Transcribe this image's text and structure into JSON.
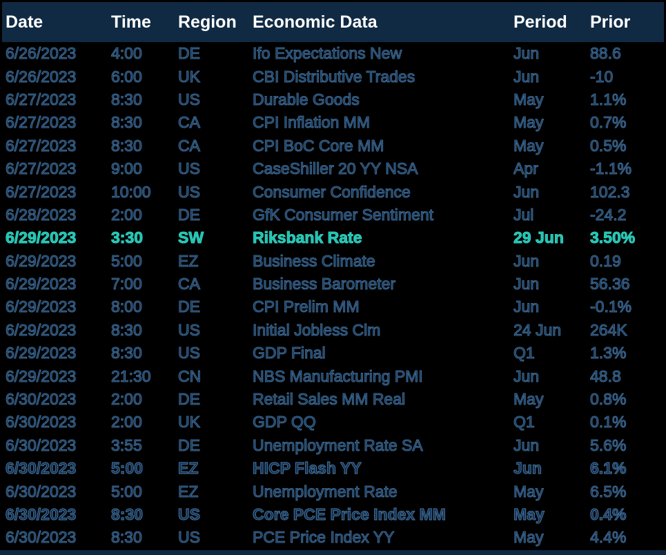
{
  "header": {
    "columns": [
      "Date",
      "Time",
      "Region",
      "Economic Data",
      "Period",
      "Prior"
    ]
  },
  "colors": {
    "header_bg": "#102a43",
    "background": "#000000",
    "row_fill": "#122e4c",
    "row_outline": "#3e6a94",
    "highlight": "#23c0b0",
    "highlight_outline": "#2fd2c0",
    "header_text": "#ffffff"
  },
  "rows": [
    {
      "date": "6/26/2023",
      "time": "4:00",
      "region": "DE",
      "event": "Ifo Expectations New",
      "period": "Jun",
      "prior": "88.6",
      "style": "normal"
    },
    {
      "date": "6/26/2023",
      "time": "6:00",
      "region": "UK",
      "event": "CBI Distributive Trades",
      "period": "Jun",
      "prior": "-10",
      "style": "normal"
    },
    {
      "date": "6/27/2023",
      "time": "8:30",
      "region": "US",
      "event": "Durable Goods",
      "period": "May",
      "prior": "1.1%",
      "style": "normal"
    },
    {
      "date": "6/27/2023",
      "time": "8:30",
      "region": "CA",
      "event": "CPI Inflation MM",
      "period": "May",
      "prior": "0.7%",
      "style": "normal"
    },
    {
      "date": "6/27/2023",
      "time": "8:30",
      "region": "CA",
      "event": "CPI BoC Core MM",
      "period": "May",
      "prior": "0.5%",
      "style": "normal"
    },
    {
      "date": "6/27/2023",
      "time": "9:00",
      "region": "US",
      "event": "CaseShiller 20 YY NSA",
      "period": "Apr",
      "prior": "-1.1%",
      "style": "normal"
    },
    {
      "date": "6/27/2023",
      "time": "10:00",
      "region": "US",
      "event": "Consumer Confidence",
      "period": "Jun",
      "prior": "102.3",
      "style": "normal"
    },
    {
      "date": "6/28/2023",
      "time": "2:00",
      "region": "DE",
      "event": "GfK Consumer Sentiment",
      "period": "Jul",
      "prior": "-24.2",
      "style": "normal"
    },
    {
      "date": "6/29/2023",
      "time": "3:30",
      "region": "SW",
      "event": "Riksbank Rate",
      "period": "29 Jun",
      "prior": "3.50%",
      "style": "highlight"
    },
    {
      "date": "6/29/2023",
      "time": "5:00",
      "region": "EZ",
      "event": "Business Climate",
      "period": "Jun",
      "prior": "0.19",
      "style": "normal"
    },
    {
      "date": "6/29/2023",
      "time": "7:00",
      "region": "CA",
      "event": "Business Barometer",
      "period": "Jun",
      "prior": "56.36",
      "style": "normal"
    },
    {
      "date": "6/29/2023",
      "time": "8:00",
      "region": "DE",
      "event": "CPI Prelim MM",
      "period": "Jun",
      "prior": "-0.1%",
      "style": "normal"
    },
    {
      "date": "6/29/2023",
      "time": "8:30",
      "region": "US",
      "event": "Initial Jobless Clm",
      "period": "24 Jun",
      "prior": "264K",
      "style": "normal"
    },
    {
      "date": "6/29/2023",
      "time": "8:30",
      "region": "US",
      "event": "GDP Final",
      "period": "Q1",
      "prior": "1.3%",
      "style": "normal"
    },
    {
      "date": "6/29/2023",
      "time": "21:30",
      "region": "CN",
      "event": "NBS Manufacturing PMI",
      "period": "Jun",
      "prior": "48.8",
      "style": "normal"
    },
    {
      "date": "6/30/2023",
      "time": "2:00",
      "region": "DE",
      "event": "Retail Sales MM Real",
      "period": "May",
      "prior": "0.8%",
      "style": "normal"
    },
    {
      "date": "6/30/2023",
      "time": "2:00",
      "region": "UK",
      "event": "GDP QQ",
      "period": "Q1",
      "prior": "0.1%",
      "style": "normal"
    },
    {
      "date": "6/30/2023",
      "time": "3:55",
      "region": "DE",
      "event": "Unemployment Rate SA",
      "period": "Jun",
      "prior": "5.6%",
      "style": "normal"
    },
    {
      "date": "6/30/2023",
      "time": "5:00",
      "region": "EZ",
      "event": "HICP Flash YY",
      "period": "Jun",
      "prior": "6.1%",
      "style": "bold"
    },
    {
      "date": "6/30/2023",
      "time": "5:00",
      "region": "EZ",
      "event": "Unemployment Rate",
      "period": "May",
      "prior": "6.5%",
      "style": "normal"
    },
    {
      "date": "6/30/2023",
      "time": "8:30",
      "region": "US",
      "event": "Core PCE Price Index MM",
      "period": "May",
      "prior": "0.4%",
      "style": "bold"
    },
    {
      "date": "6/30/2023",
      "time": "8:30",
      "region": "US",
      "event": "PCE Price Index YY",
      "period": "May",
      "prior": "4.4%",
      "style": "normal"
    }
  ]
}
